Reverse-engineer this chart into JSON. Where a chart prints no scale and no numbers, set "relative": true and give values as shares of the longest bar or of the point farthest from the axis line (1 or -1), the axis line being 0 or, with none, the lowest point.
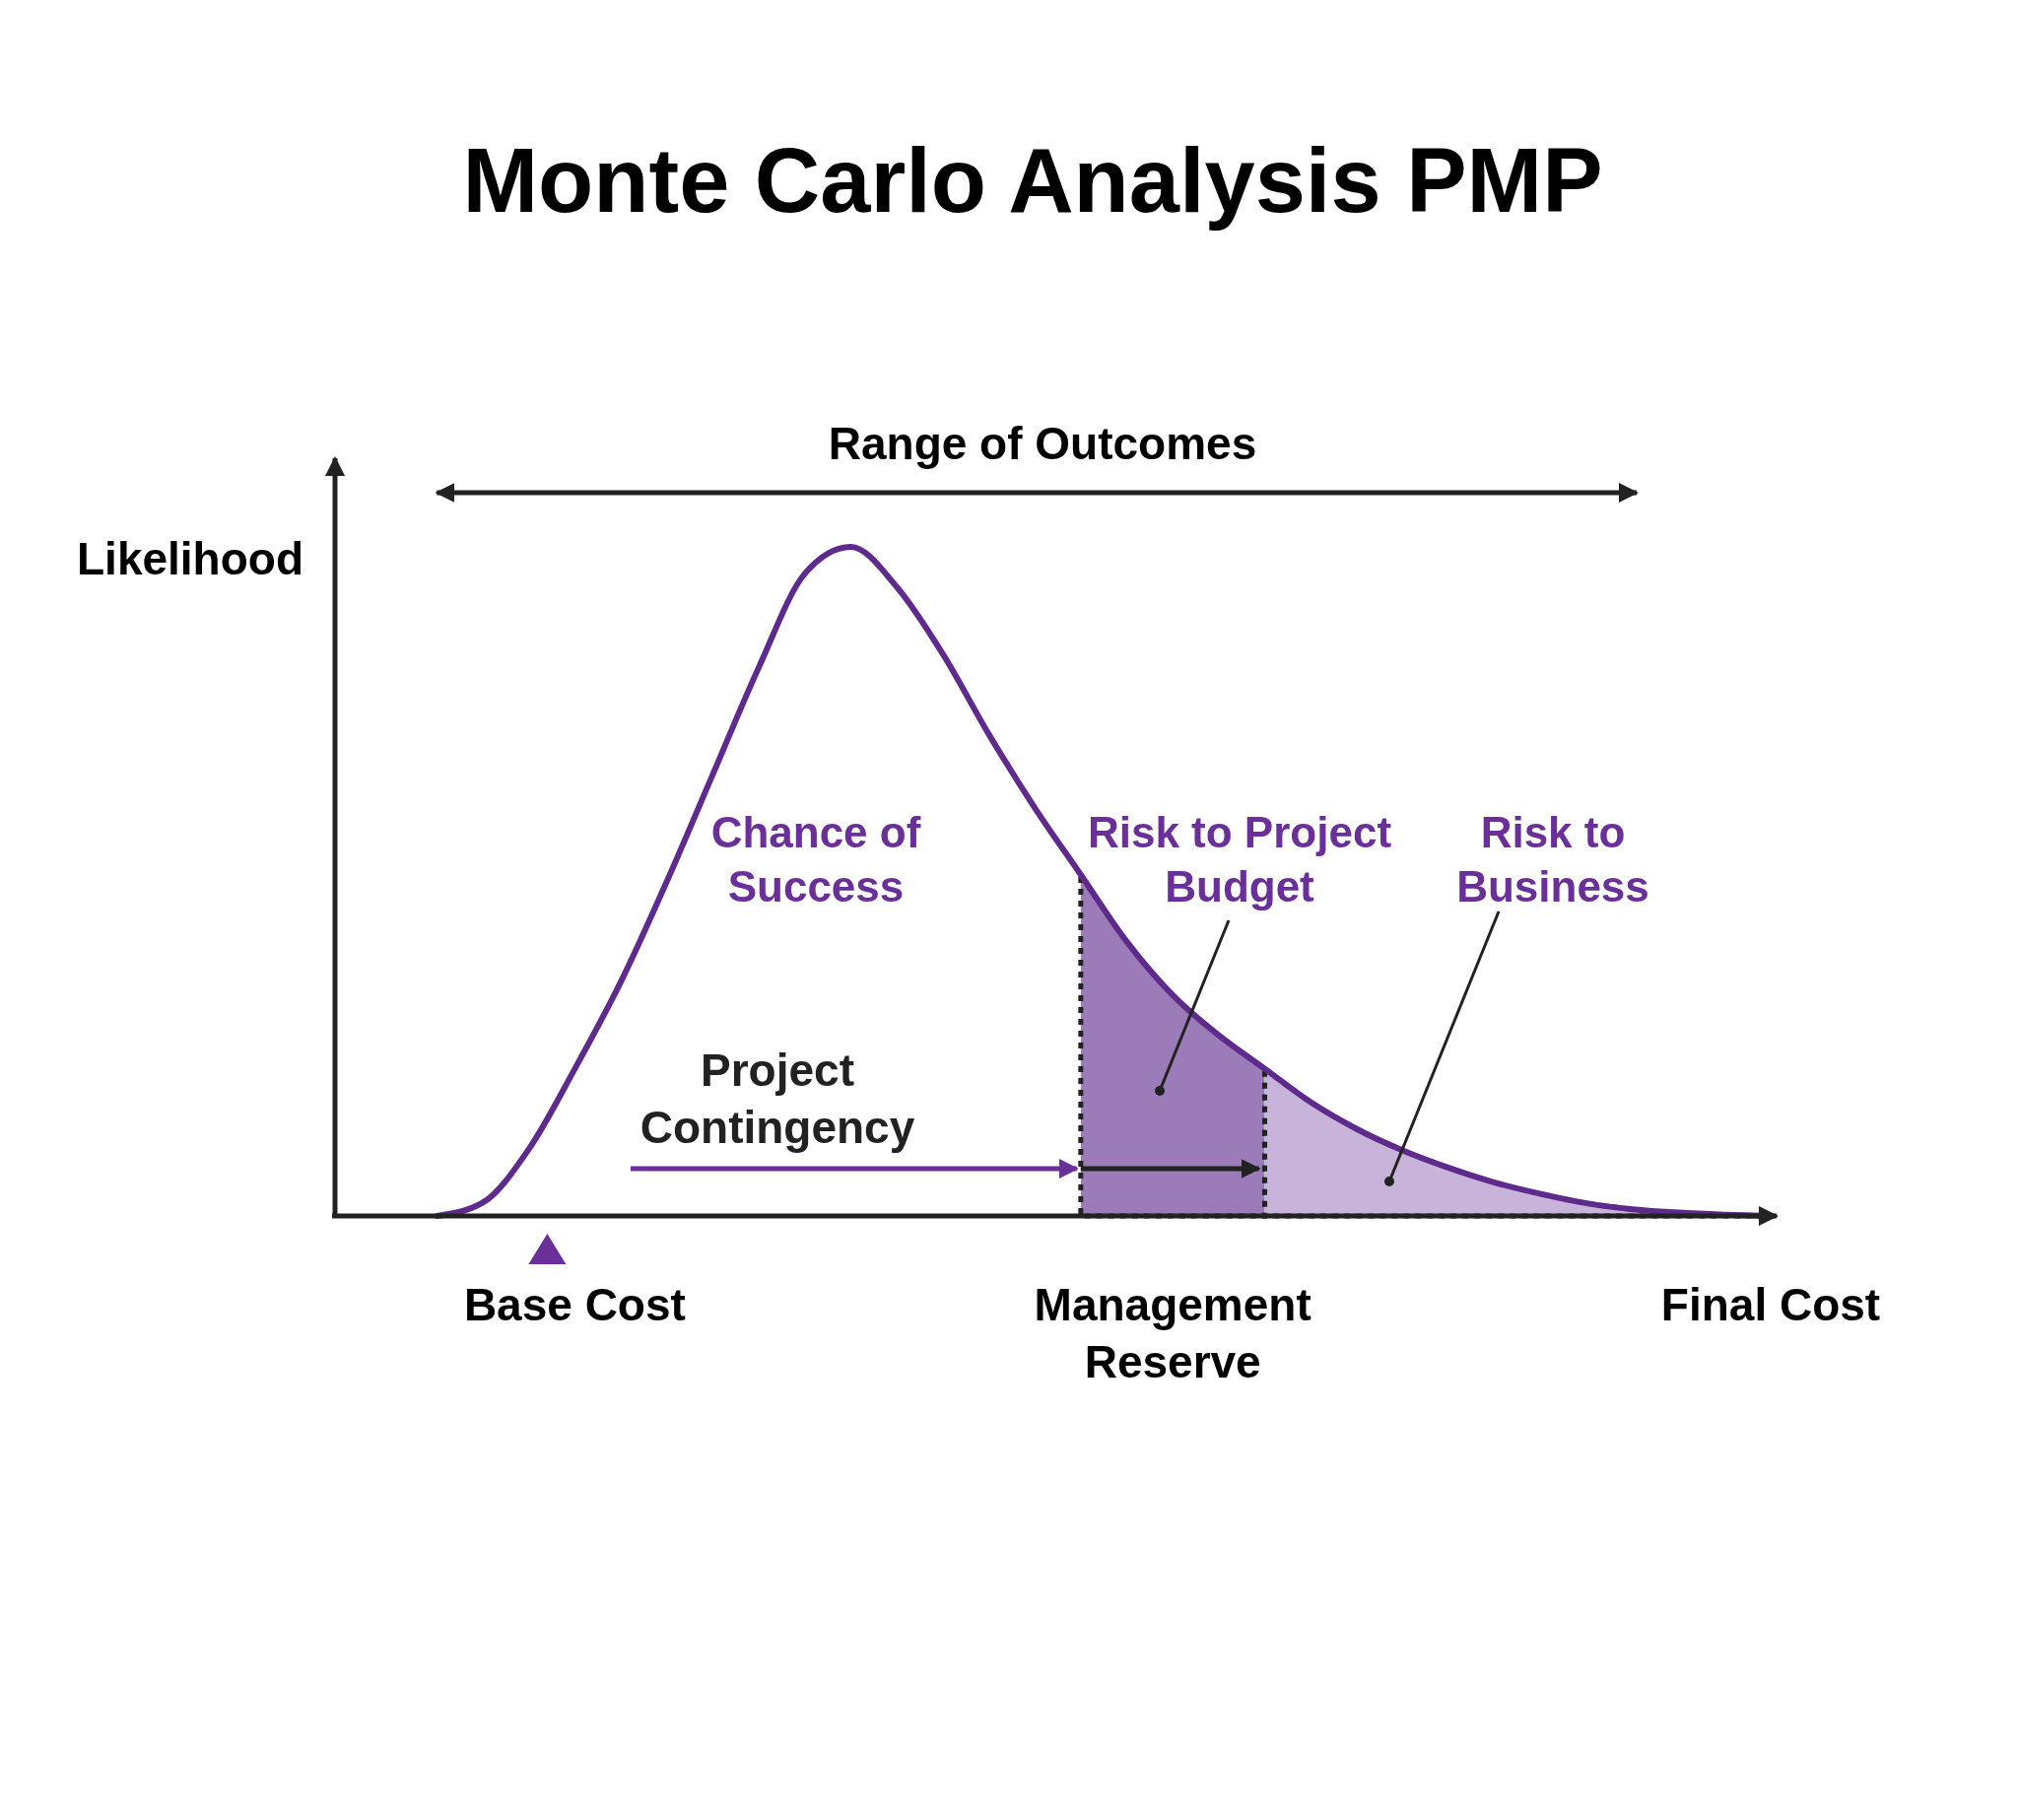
{
  "chart_data": {
    "type": "line",
    "title": "Monte Carlo Analysis PMP",
    "ylabel": "Likelihood",
    "relative": true,
    "categories": [
      null,
      null,
      null,
      null,
      null,
      "Base Cost",
      null,
      null,
      null,
      null,
      null,
      null,
      null,
      null,
      null,
      null,
      null,
      null,
      "Management\nReserve",
      null,
      null,
      null,
      null,
      null,
      null,
      null,
      null,
      null,
      null,
      null,
      null,
      "Final Cost"
    ],
    "series": [
      {
        "type": "area",
        "color": "#9b7cb8",
        "line_style": "dotted",
        "values": [
          null,
          null,
          null,
          null,
          null,
          null,
          null,
          null,
          null,
          null,
          null,
          null,
          null,
          null,
          null,
          null,
          0.51,
          0.41,
          0.33,
          0.27,
          0.22,
          null,
          null,
          null,
          null,
          null,
          null,
          null,
          null,
          null,
          null,
          null
        ]
      },
      {
        "type": "area",
        "color": "#c8b4da",
        "line_style": "dotted",
        "values": [
          null,
          null,
          null,
          null,
          null,
          null,
          null,
          null,
          null,
          null,
          null,
          null,
          null,
          null,
          null,
          null,
          null,
          null,
          null,
          null,
          0.22,
          0.17,
          0.13,
          0.098,
          0.072,
          0.05,
          0.033,
          0.019,
          0.01,
          0.005,
          0.002,
          0
        ]
      },
      {
        "type": "line",
        "color": "#5e2a8c",
        "values": [
          null,
          null,
          0,
          0.02,
          0.1,
          0.22,
          0.35,
          0.5,
          0.66,
          0.82,
          0.96,
          1,
          0.94,
          0.84,
          0.72,
          0.61,
          0.51,
          0.41,
          0.33,
          0.27,
          0.22,
          0.17,
          0.13,
          0.098,
          0.072,
          0.05,
          0.033,
          0.019,
          0.01,
          0.005,
          0.002,
          0
        ]
      }
    ],
    "annotations": [
      "Range of Outcomes",
      "Chance of\nSuccess",
      "Project\nContingency",
      "Risk to Project\nBudget",
      "Risk to\nBusiness"
    ]
  }
}
